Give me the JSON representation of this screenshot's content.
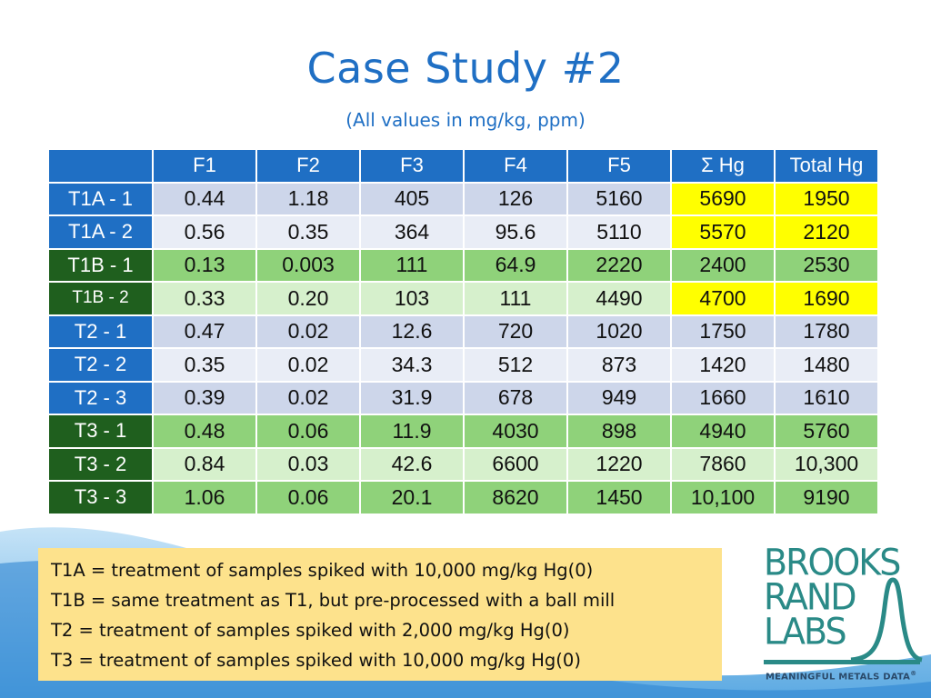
{
  "title": "Case Study #2",
  "subtitle": "(All values in mg/kg, ppm)",
  "table": {
    "headers": [
      "",
      "F1",
      "F2",
      "F3",
      "F4",
      "F5",
      "Σ Hg",
      "Total Hg"
    ],
    "rows": [
      {
        "label": "T1A - 1",
        "cells": [
          "0.44",
          "1.18",
          "405",
          "126",
          "5160",
          "5690",
          "1950"
        ]
      },
      {
        "label": "T1A - 2",
        "cells": [
          "0.56",
          "0.35",
          "364",
          "95.6",
          "5110",
          "5570",
          "2120"
        ]
      },
      {
        "label": "T1B - 1",
        "cells": [
          "0.13",
          "0.003",
          "111",
          "64.9",
          "2220",
          "2400",
          "2530"
        ]
      },
      {
        "label": "T1B - 2",
        "cells": [
          "0.33",
          "0.20",
          "103",
          "111",
          "4490",
          "4700",
          "1690"
        ]
      },
      {
        "label": "T2 - 1",
        "cells": [
          "0.47",
          "0.02",
          "12.6",
          "720",
          "1020",
          "1750",
          "1780"
        ]
      },
      {
        "label": "T2 - 2",
        "cells": [
          "0.35",
          "0.02",
          "34.3",
          "512",
          "873",
          "1420",
          "1480"
        ]
      },
      {
        "label": "T2 - 3",
        "cells": [
          "0.39",
          "0.02",
          "31.9",
          "678",
          "949",
          "1660",
          "1610"
        ]
      },
      {
        "label": "T3 - 1",
        "cells": [
          "0.48",
          "0.06",
          "11.9",
          "4030",
          "898",
          "4940",
          "5760"
        ]
      },
      {
        "label": "T3 - 2",
        "cells": [
          "0.84",
          "0.03",
          "42.6",
          "6600",
          "1220",
          "7860",
          "10,300"
        ]
      },
      {
        "label": "T3 - 3",
        "cells": [
          "1.06",
          "0.06",
          "20.1",
          "8620",
          "1450",
          "10,100",
          "9190"
        ]
      }
    ]
  },
  "legend": [
    "T1A = treatment of samples spiked with 10,000 mg/kg Hg(0)",
    "T1B = same treatment as T1, but pre-processed with a ball mill",
    "T2 = treatment of samples spiked with 2,000 mg/kg Hg(0)",
    "T3 = treatment of samples spiked with 10,000 mg/kg Hg(0)"
  ],
  "logo": {
    "line1": "BROOKS",
    "line2": "RAND",
    "line3": "LABS",
    "tagline": "MEANINGFUL METALS DATA",
    "registered": "®"
  },
  "colors": {
    "title_blue": "#1f6fc4",
    "header_blue": "#1f6fc4",
    "row_green_dark": "#1f5f1e",
    "highlight_yellow": "#ffff00",
    "legend_bg": "#fde28c",
    "logo_teal": "#2a8a87"
  }
}
